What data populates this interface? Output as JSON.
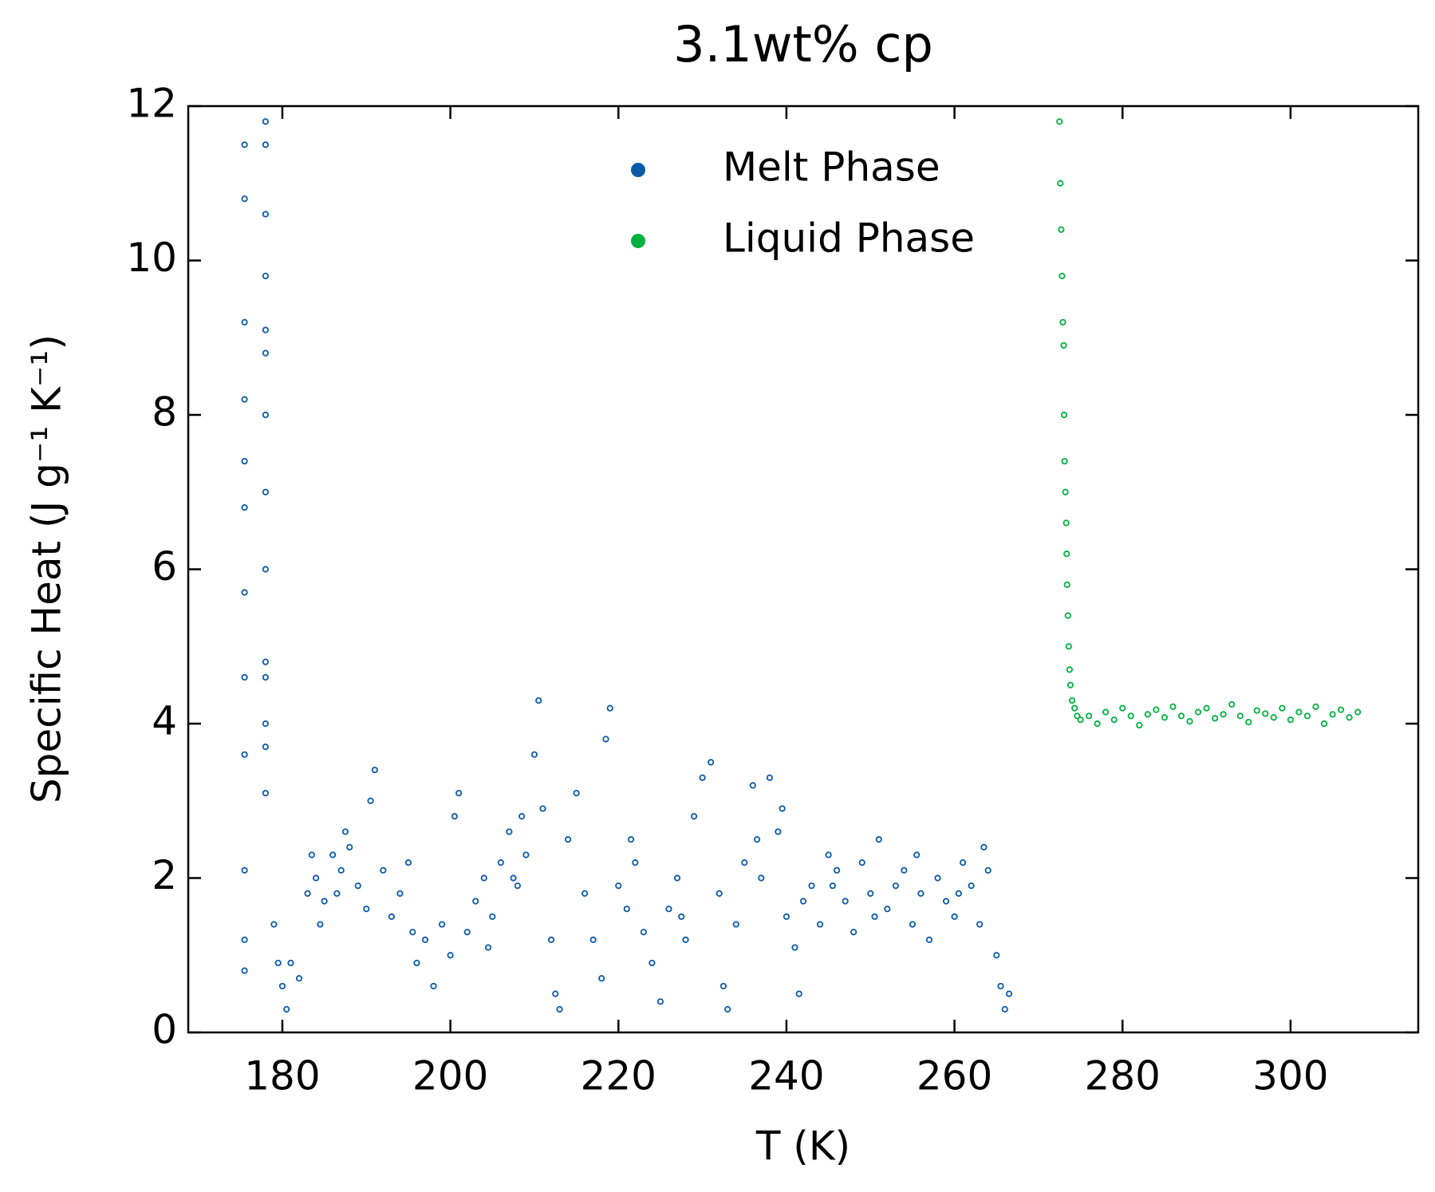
{
  "chart_data": {
    "type": "scatter",
    "title": "3.1wt% cp",
    "x_label": "T (K)",
    "y_label": "Specific Heat (J g⁻¹ K⁻¹)",
    "xlim": [
      168.8,
      315.2
    ],
    "xticks": [
      180,
      200,
      220,
      240,
      260,
      280,
      300
    ],
    "ylim": [
      0,
      12
    ],
    "yticks": [
      0,
      2,
      4,
      6,
      8,
      10,
      12
    ],
    "grid": false,
    "legend": "upper center",
    "series": [
      {
        "name": "Melt Phase",
        "color": "#0b5aa8",
        "x": [
          175.5,
          175.5,
          175.5,
          175.5,
          175.5,
          175.5,
          175.5,
          175.5,
          175.5,
          175.5,
          175.5,
          175.5,
          178,
          178,
          178,
          178,
          178,
          178,
          178,
          178,
          178,
          178,
          178,
          178,
          178,
          178,
          179,
          179.5,
          180,
          180.5,
          181,
          182,
          183,
          184,
          185,
          186,
          187,
          188,
          189,
          190,
          190.5,
          191,
          192,
          193,
          194,
          195,
          196,
          197,
          198,
          199,
          200,
          200.5,
          201,
          202,
          203,
          204,
          205,
          206,
          207,
          208,
          209,
          210,
          210.5,
          211,
          212,
          212.5,
          213,
          214,
          215,
          216,
          217,
          218,
          218.5,
          219,
          220,
          221,
          222,
          223,
          224,
          225,
          226,
          227,
          228,
          229,
          230,
          231,
          232,
          232.5,
          233,
          234,
          235,
          236,
          237,
          238,
          239,
          240,
          241,
          241.5,
          242,
          243,
          244,
          245,
          246,
          247,
          248,
          249,
          250,
          251,
          252,
          253,
          254,
          255,
          256,
          257,
          258,
          259,
          260,
          261,
          262,
          263,
          264,
          265,
          265.5,
          266,
          266.5,
          183.5,
          184.5,
          186.5,
          187.5,
          195.5,
          204.5,
          207.5,
          208.5,
          221.5,
          227.5,
          236.5,
          239.5,
          245.5,
          250.5,
          255.5,
          260.5,
          263.5
        ],
        "values": [
          0.8,
          1.2,
          2.1,
          3.6,
          4.6,
          5.7,
          6.8,
          7.4,
          8.2,
          9.2,
          10.8,
          11.5,
          11.8,
          11.5,
          10.6,
          9.8,
          9.1,
          8.8,
          8.0,
          7.0,
          6.0,
          4.8,
          4.6,
          4.0,
          3.7,
          3.1,
          1.4,
          0.9,
          0.6,
          0.3,
          0.9,
          0.7,
          1.8,
          2.0,
          1.7,
          2.3,
          2.1,
          2.4,
          1.9,
          1.6,
          3.0,
          3.4,
          2.1,
          1.5,
          1.8,
          2.2,
          0.9,
          1.2,
          0.6,
          1.4,
          1.0,
          2.8,
          3.1,
          1.3,
          1.7,
          2.0,
          1.5,
          2.2,
          2.6,
          1.9,
          2.3,
          3.6,
          4.3,
          2.9,
          1.2,
          0.5,
          0.3,
          2.5,
          3.1,
          1.8,
          1.2,
          0.7,
          3.8,
          4.2,
          1.9,
          1.6,
          2.2,
          1.3,
          0.9,
          0.4,
          1.6,
          2.0,
          1.2,
          2.8,
          3.3,
          3.5,
          1.8,
          0.6,
          0.3,
          1.4,
          2.2,
          3.2,
          2.0,
          3.3,
          2.6,
          1.5,
          1.1,
          0.5,
          1.7,
          1.9,
          1.4,
          2.3,
          2.1,
          1.7,
          1.3,
          2.2,
          1.8,
          2.5,
          1.6,
          1.9,
          2.1,
          1.4,
          1.8,
          1.2,
          2.0,
          1.7,
          1.5,
          2.2,
          1.9,
          1.4,
          2.1,
          1.0,
          0.6,
          0.3,
          0.5,
          2.3,
          1.4,
          1.8,
          2.6,
          1.3,
          1.1,
          2.0,
          2.8,
          2.5,
          1.5,
          2.5,
          2.9,
          1.9,
          1.5,
          2.3,
          1.8,
          2.4
        ]
      },
      {
        "name": "Liquid Phase",
        "color": "#00b140",
        "x": [
          272.5,
          272.6,
          272.7,
          272.8,
          272.9,
          273,
          273.05,
          273.1,
          273.2,
          273.3,
          273.35,
          273.4,
          273.5,
          273.6,
          273.7,
          273.8,
          274,
          274.3,
          274.6,
          275,
          276,
          277,
          278,
          279,
          280,
          281,
          282,
          283,
          284,
          285,
          286,
          287,
          288,
          289,
          290,
          291,
          292,
          293,
          294,
          295,
          296,
          297,
          298,
          299,
          300,
          301,
          302,
          303,
          304,
          305,
          306,
          307,
          308
        ],
        "values": [
          11.8,
          11.0,
          10.4,
          9.8,
          9.2,
          8.9,
          8.0,
          7.4,
          7.0,
          6.6,
          6.2,
          5.8,
          5.4,
          5.0,
          4.7,
          4.5,
          4.3,
          4.2,
          4.1,
          4.05,
          4.1,
          4.0,
          4.15,
          4.05,
          4.2,
          4.1,
          3.98,
          4.12,
          4.18,
          4.08,
          4.22,
          4.1,
          4.03,
          4.15,
          4.2,
          4.07,
          4.12,
          4.25,
          4.1,
          4.02,
          4.17,
          4.13,
          4.08,
          4.2,
          4.05,
          4.15,
          4.1,
          4.22,
          4.0,
          4.12,
          4.18,
          4.08,
          4.15
        ]
      }
    ]
  }
}
